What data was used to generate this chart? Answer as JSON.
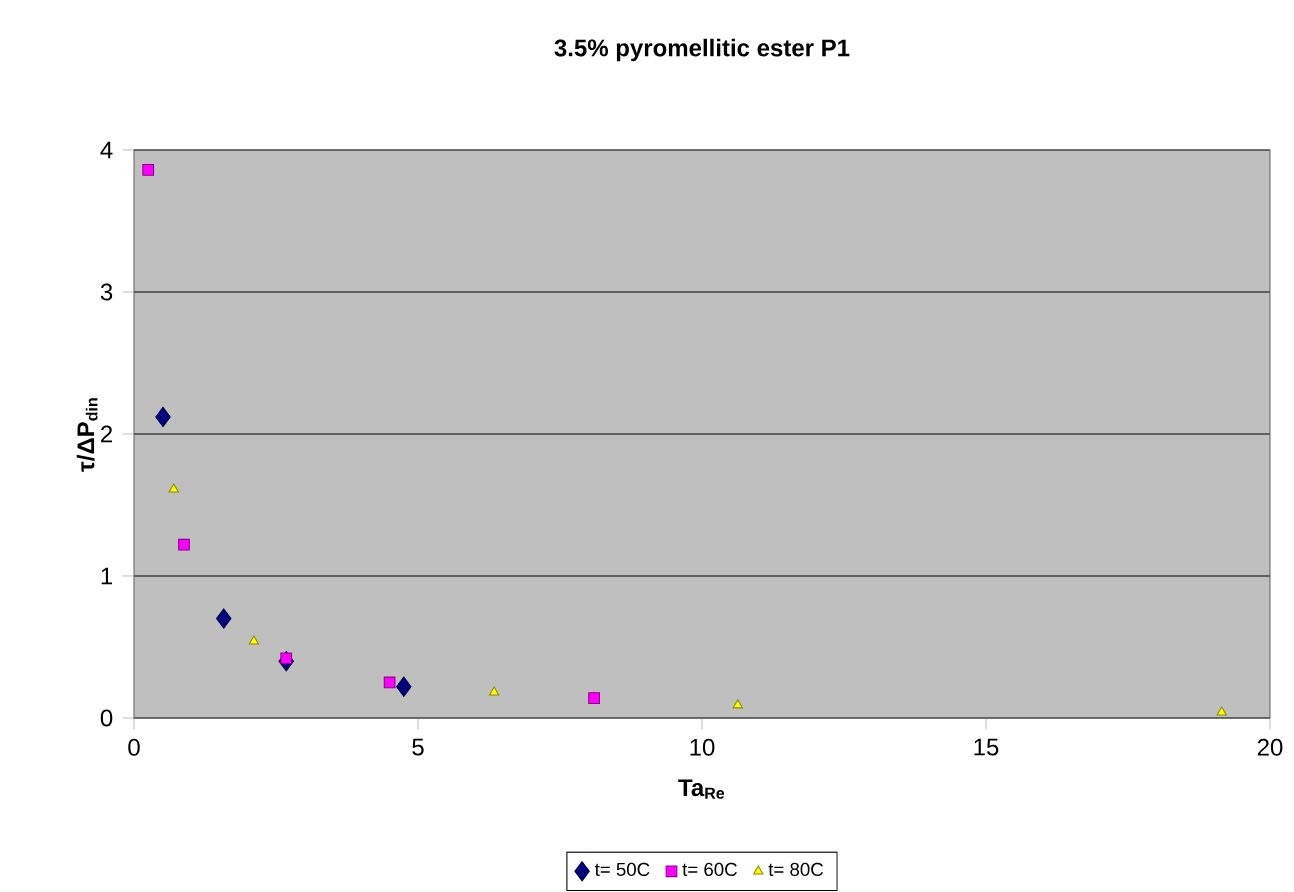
{
  "chart_data": {
    "type": "scatter",
    "title": "**3.5% pyromellitic ester P1**",
    "xlabel": "**Ta$_{Re}$**",
    "ylabel": "**τ/ΔP$_{din}$**",
    "xlim": [
      0,
      20
    ],
    "xticks": [
      0,
      5,
      10,
      15,
      20
    ],
    "ylim": [
      0,
      4
    ],
    "yticks": [
      0,
      1,
      2,
      3,
      4
    ],
    "grid": "y",
    "legend": "bottom",
    "series": [
      {
        "name": "t= 50C",
        "color": "#000080",
        "marker": "diamond",
        "x": [
          0.51,
          1.58,
          2.68,
          4.75
        ],
        "values": [
          2.12,
          0.7,
          0.4,
          0.22
        ]
      },
      {
        "name": "t= 60C",
        "color": "#ff00ff",
        "marker": "square",
        "x": [
          0.25,
          0.88,
          2.68,
          4.5,
          8.1
        ],
        "values": [
          3.86,
          1.22,
          0.42,
          0.25,
          0.14
        ]
      },
      {
        "name": "t= 80C",
        "color": "#ffff00",
        "marker": "triangle",
        "x": [
          0.7,
          2.11,
          6.34,
          10.63,
          19.15
        ],
        "values": [
          1.61,
          0.54,
          0.18,
          0.09,
          0.04
        ]
      }
    ]
  }
}
